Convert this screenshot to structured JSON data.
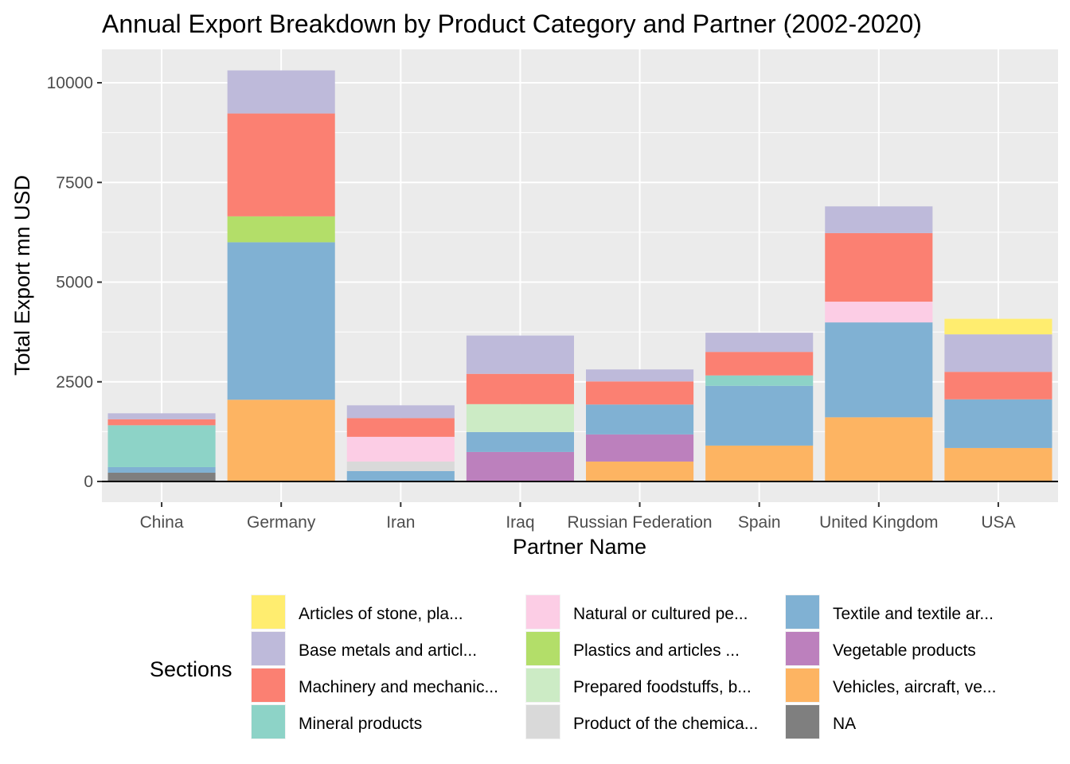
{
  "chart_data": {
    "type": "bar",
    "stacked": true,
    "title": "Annual Export Breakdown by Product Category and Partner (2002-2020)",
    "xlabel": "Partner Name",
    "ylabel": "Total Export mn USD",
    "ylim": [
      -500,
      10700
    ],
    "yticks": [
      0,
      2500,
      5000,
      7500,
      10000
    ],
    "grid": true,
    "legend_position": "bottom",
    "categories": [
      "China",
      "Germany",
      "Iran",
      "Iraq",
      "Russian Federation",
      "Spain",
      "United Kingdom",
      "USA"
    ],
    "legend": {
      "title": "Sections",
      "entries": [
        "Articles of stone, pla...",
        "Base metals and articl...",
        "Machinery and mechanic...",
        "Mineral products",
        "Natural or cultured pe...",
        "Plastics and articles ...",
        "Prepared foodstuffs, b...",
        "Product of the chemica...",
        "Textile and textile ar...",
        "Vegetable products",
        "Vehicles, aircraft, ve...",
        "NA"
      ]
    },
    "series": [
      {
        "name": "NA",
        "color": "#7f7f7f",
        "values": [
          220,
          0,
          0,
          0,
          0,
          0,
          0,
          0
        ]
      },
      {
        "name": "Vehicles, aircraft, ve...",
        "color": "#fdb462",
        "values": [
          0,
          2050,
          0,
          0,
          500,
          900,
          1610,
          840
        ]
      },
      {
        "name": "Vegetable products",
        "color": "#bc80bd",
        "values": [
          0,
          0,
          0,
          740,
          680,
          0,
          0,
          0
        ]
      },
      {
        "name": "Textile and textile ar...",
        "color": "#80b1d3",
        "values": [
          140,
          3950,
          260,
          500,
          750,
          1500,
          2380,
          1220
        ]
      },
      {
        "name": "Product of the chemica...",
        "color": "#d9d9d9",
        "values": [
          0,
          0,
          240,
          0,
          0,
          0,
          0,
          0
        ]
      },
      {
        "name": "Prepared foodstuffs, b...",
        "color": "#ccebc5",
        "values": [
          0,
          0,
          0,
          700,
          0,
          0,
          0,
          0
        ]
      },
      {
        "name": "Plastics and articles ...",
        "color": "#b3de69",
        "values": [
          0,
          650,
          0,
          0,
          0,
          0,
          0,
          0
        ]
      },
      {
        "name": "Natural or cultured pe...",
        "color": "#fccde5",
        "values": [
          0,
          0,
          620,
          0,
          0,
          0,
          520,
          0
        ]
      },
      {
        "name": "Mineral products",
        "color": "#8dd3c7",
        "values": [
          1050,
          0,
          0,
          0,
          0,
          260,
          0,
          0
        ]
      },
      {
        "name": "Machinery and mechanic...",
        "color": "#fb8072",
        "values": [
          150,
          2580,
          470,
          760,
          580,
          590,
          1720,
          690
        ]
      },
      {
        "name": "Base metals and articl...",
        "color": "#bebada",
        "values": [
          150,
          1080,
          320,
          960,
          300,
          480,
          670,
          940
        ]
      },
      {
        "name": "Articles of stone, pla...",
        "color": "#ffed6f",
        "values": [
          0,
          0,
          0,
          0,
          0,
          0,
          0,
          390
        ]
      }
    ]
  }
}
